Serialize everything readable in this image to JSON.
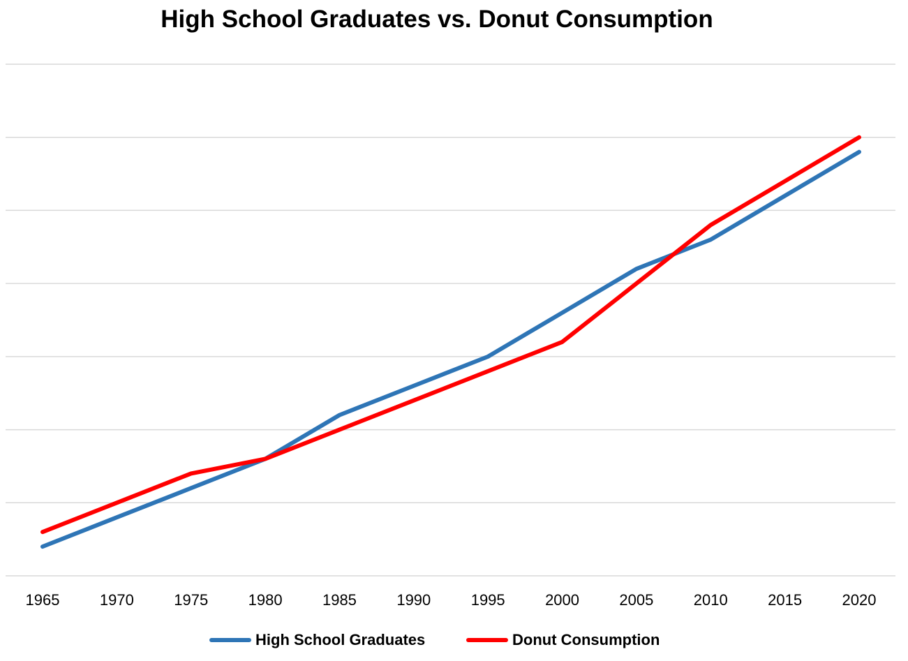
{
  "chart_data": {
    "type": "line",
    "title": "High School Graduates vs. Donut Consumption",
    "xlabel": "",
    "ylabel": "",
    "x": [
      1965,
      1970,
      1975,
      1980,
      1985,
      1990,
      1995,
      2000,
      2005,
      2010,
      2015,
      2020
    ],
    "ylim": [
      0,
      7
    ],
    "y_tick_labels_shown": false,
    "grid": true,
    "legend": "bottom",
    "series": [
      {
        "name": "High School Graduates",
        "color": "#2E75B6",
        "values": [
          0.4,
          0.8,
          1.2,
          1.6,
          2.2,
          2.6,
          3.0,
          3.6,
          4.2,
          4.6,
          5.2,
          5.8
        ]
      },
      {
        "name": "Donut Consumption",
        "color": "#FF0000",
        "values": [
          0.6,
          1.0,
          1.4,
          1.6,
          2.0,
          2.4,
          2.8,
          3.2,
          4.0,
          4.8,
          5.4,
          6.0
        ]
      }
    ]
  }
}
